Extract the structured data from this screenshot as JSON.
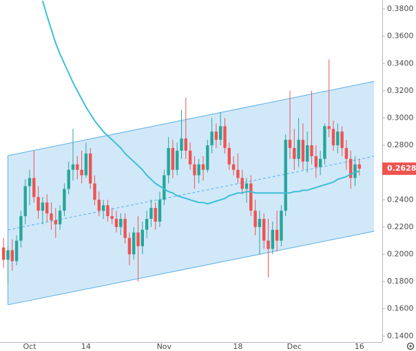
{
  "chart_data": {
    "type": "candlestick",
    "categories": [
      null,
      null,
      null,
      null,
      null,
      null,
      "Oct",
      null,
      null,
      null,
      null,
      null,
      null,
      null,
      null,
      null,
      null,
      null,
      null,
      "14",
      null,
      null,
      null,
      null,
      null,
      null,
      null,
      null,
      null,
      null,
      null,
      null,
      null,
      null,
      null,
      null,
      null,
      "Nov",
      null,
      null,
      null,
      null,
      null,
      null,
      null,
      null,
      null,
      null,
      null,
      null,
      null,
      null,
      null,
      null,
      "18",
      null,
      null,
      null,
      null,
      null,
      null,
      null,
      null,
      null,
      null,
      null,
      null,
      "Dec",
      null,
      null,
      null,
      null,
      null,
      null,
      null,
      null,
      null,
      null,
      null,
      null,
      null,
      null,
      "16"
    ],
    "open": [
      0.205,
      0.196,
      0.203,
      0.195,
      0.21,
      0.228,
      0.25,
      0.256,
      0.242,
      0.232,
      0.238,
      0.23,
      0.225,
      0.222,
      0.232,
      0.248,
      0.262,
      0.266,
      0.262,
      0.258,
      0.274,
      0.252,
      0.24,
      0.232,
      0.236,
      0.228,
      0.226,
      0.22,
      0.226,
      0.212,
      0.2,
      0.216,
      0.206,
      0.218,
      0.226,
      0.234,
      0.224,
      0.24,
      0.258,
      0.278,
      0.262,
      0.276,
      0.285,
      0.276,
      0.266,
      0.258,
      0.266,
      0.262,
      0.28,
      0.29,
      0.284,
      0.294,
      0.278,
      0.266,
      0.262,
      0.256,
      0.248,
      0.252,
      0.232,
      0.22,
      0.226,
      0.21,
      0.204,
      0.218,
      0.21,
      0.232,
      0.284,
      0.278,
      0.27,
      0.284,
      0.268,
      0.28,
      0.272,
      0.264,
      0.27,
      0.294,
      0.292,
      0.28,
      0.29,
      0.278,
      0.27,
      0.256,
      0.266
    ],
    "high": [
      0.212,
      0.206,
      0.211,
      0.214,
      0.232,
      0.255,
      0.262,
      0.276,
      0.25,
      0.242,
      0.244,
      0.238,
      0.234,
      0.236,
      0.252,
      0.268,
      0.292,
      0.272,
      0.276,
      0.282,
      0.278,
      0.258,
      0.246,
      0.24,
      0.24,
      0.234,
      0.232,
      0.23,
      0.23,
      0.216,
      0.22,
      0.228,
      0.224,
      0.232,
      0.24,
      0.238,
      0.246,
      0.262,
      0.286,
      0.284,
      0.282,
      0.306,
      0.315,
      0.282,
      0.272,
      0.27,
      0.272,
      0.284,
      0.3,
      0.296,
      0.304,
      0.3,
      0.282,
      0.272,
      0.274,
      0.262,
      0.256,
      0.258,
      0.24,
      0.232,
      0.23,
      0.226,
      0.224,
      0.232,
      0.236,
      0.288,
      0.32,
      0.292,
      0.3,
      0.296,
      0.29,
      0.32,
      0.28,
      0.276,
      0.296,
      0.343,
      0.298,
      0.296,
      0.294,
      0.284,
      0.276,
      0.272,
      0.27
    ],
    "low": [
      0.19,
      0.178,
      0.188,
      0.192,
      0.205,
      0.222,
      0.236,
      0.238,
      0.226,
      0.222,
      0.224,
      0.218,
      0.212,
      0.218,
      0.228,
      0.244,
      0.254,
      0.255,
      0.252,
      0.256,
      0.248,
      0.236,
      0.228,
      0.226,
      0.224,
      0.222,
      0.216,
      0.214,
      0.208,
      0.192,
      0.196,
      0.18,
      0.2,
      0.212,
      0.22,
      0.218,
      0.22,
      0.236,
      0.252,
      0.256,
      0.258,
      0.27,
      0.27,
      0.262,
      0.248,
      0.252,
      0.254,
      0.26,
      0.274,
      0.278,
      0.28,
      0.274,
      0.262,
      0.258,
      0.252,
      0.244,
      0.238,
      0.228,
      0.214,
      0.2,
      0.204,
      0.183,
      0.2,
      0.202,
      0.206,
      0.228,
      0.27,
      0.262,
      0.264,
      0.262,
      0.26,
      0.266,
      0.256,
      0.258,
      0.266,
      0.286,
      0.276,
      0.274,
      0.272,
      0.262,
      0.248,
      0.25,
      0.258
    ],
    "close": [
      0.196,
      0.203,
      0.195,
      0.21,
      0.228,
      0.25,
      0.256,
      0.242,
      0.232,
      0.238,
      0.23,
      0.225,
      0.222,
      0.232,
      0.248,
      0.262,
      0.266,
      0.262,
      0.258,
      0.274,
      0.252,
      0.24,
      0.232,
      0.236,
      0.228,
      0.226,
      0.22,
      0.226,
      0.212,
      0.2,
      0.216,
      0.206,
      0.218,
      0.226,
      0.234,
      0.224,
      0.24,
      0.258,
      0.278,
      0.262,
      0.276,
      0.285,
      0.276,
      0.266,
      0.258,
      0.266,
      0.262,
      0.28,
      0.29,
      0.284,
      0.294,
      0.278,
      0.266,
      0.262,
      0.256,
      0.248,
      0.252,
      0.232,
      0.22,
      0.226,
      0.21,
      0.204,
      0.218,
      0.21,
      0.232,
      0.284,
      0.278,
      0.27,
      0.284,
      0.268,
      0.28,
      0.272,
      0.264,
      0.27,
      0.294,
      0.292,
      0.28,
      0.29,
      0.278,
      0.27,
      0.256,
      0.266,
      0.2628
    ],
    "up_color": "#26a69a",
    "down_color": "#ef5350",
    "ma": {
      "color": "#3bbfd6",
      "values": [
        null,
        null,
        null,
        null,
        null,
        null,
        null,
        null,
        null,
        0.386,
        0.375,
        0.365,
        0.355,
        0.347,
        0.34,
        0.333,
        0.326,
        0.32,
        0.314,
        0.308,
        0.303,
        0.298,
        0.294,
        0.29,
        0.287,
        0.284,
        0.281,
        0.278,
        0.274,
        0.271,
        0.268,
        0.265,
        0.262,
        0.258,
        0.255,
        0.252,
        0.25,
        0.248,
        0.246,
        0.245,
        0.243,
        0.242,
        0.241,
        0.24,
        0.239,
        0.238,
        0.238,
        0.237,
        0.238,
        0.239,
        0.24,
        0.241,
        0.243,
        0.244,
        0.245,
        0.245,
        0.246,
        0.246,
        0.245,
        0.245,
        0.245,
        0.245,
        0.245,
        0.245,
        0.245,
        0.245,
        0.245,
        0.246,
        0.246,
        0.247,
        0.247,
        0.248,
        0.249,
        0.25,
        0.251,
        0.252,
        0.253,
        0.255,
        0.256,
        0.257,
        0.259,
        0.26,
        0.261
      ]
    },
    "channel": {
      "x": [
        1,
        85.4
      ],
      "upper": [
        0.2724,
        0.3269
      ],
      "middle": [
        0.2179,
        0.2719
      ],
      "lower": [
        0.1629,
        0.2169
      ],
      "color": "#5aaee8"
    },
    "ylim": [
      0.1356,
      0.3866
    ],
    "yticks": [
      {
        "value": 0.14,
        "label": "0.1400"
      },
      {
        "value": 0.16,
        "label": "0.1600"
      },
      {
        "value": 0.18,
        "label": "0.1800"
      },
      {
        "value": 0.2,
        "label": "0.2000"
      },
      {
        "value": 0.22,
        "label": "0.2200"
      },
      {
        "value": 0.24,
        "label": "0.2400"
      },
      {
        "value": 0.28,
        "label": "0.2800"
      },
      {
        "value": 0.3,
        "label": "0.3000"
      },
      {
        "value": 0.32,
        "label": "0.3200"
      },
      {
        "value": 0.34,
        "label": "0.3400"
      },
      {
        "value": 0.36,
        "label": "0.3600"
      },
      {
        "value": 0.38,
        "label": "0.3800"
      }
    ]
  }
}
